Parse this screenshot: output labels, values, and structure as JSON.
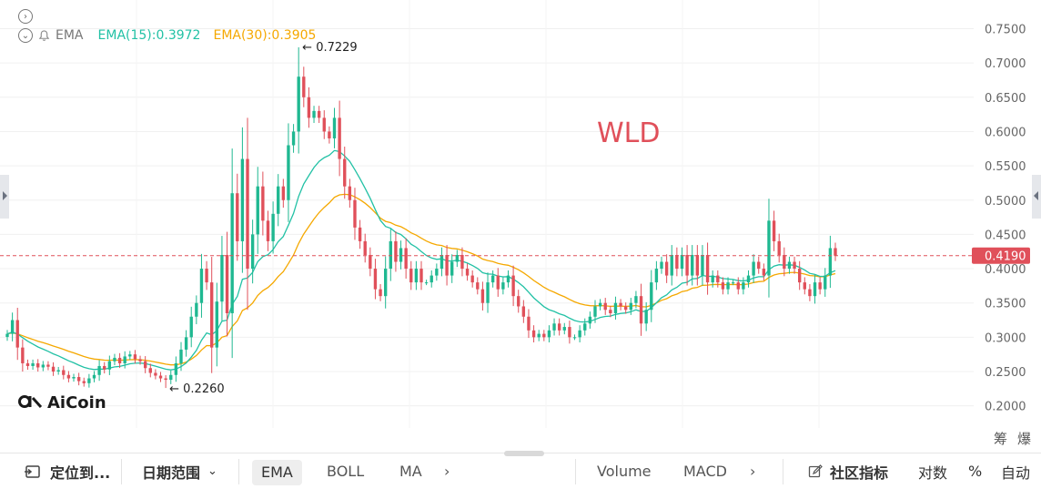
{
  "legend": {
    "indicator": "EMA",
    "ema15_label": "EMA(15):0.3972",
    "ema30_label": "EMA(30):0.3905",
    "ema15_color": "#22c1a5",
    "ema30_color": "#f5a800"
  },
  "watermark": {
    "symbol": "WLD",
    "brand": "AiCoin"
  },
  "annotations": {
    "high": "← 0.7229",
    "low": "← 0.2260"
  },
  "price_tag": "0.4190",
  "corner_labels": [
    "筹",
    "爆"
  ],
  "toolbar": {
    "locate": "定位到...",
    "date_range": "日期范围",
    "ema": "EMA",
    "boll": "BOLL",
    "ma": "MA",
    "volume": "Volume",
    "macd": "MACD",
    "community": "社区指标",
    "log": "对数",
    "percent": "%",
    "auto": "自动"
  },
  "colors": {
    "up": "#1fb891",
    "down": "#e0505a",
    "ema15": "#22c1a5",
    "ema30": "#f5a800",
    "price_line": "#e0505a"
  },
  "chart_data": {
    "type": "candlestick",
    "ylim": [
      0.17,
      0.79
    ],
    "yticks": [
      "0.7500",
      "0.7000",
      "0.6500",
      "0.6000",
      "0.5500",
      "0.5000",
      "0.4500",
      "0.4000",
      "0.3500",
      "0.3000",
      "0.2500",
      "0.2000"
    ],
    "ytick_values": [
      0.75,
      0.7,
      0.65,
      0.6,
      0.55,
      0.5,
      0.45,
      0.4,
      0.35,
      0.3,
      0.25,
      0.2
    ],
    "last_price": 0.419,
    "high": 0.7229,
    "low": 0.226,
    "high_index": 57,
    "low_index": 31,
    "ema15_last": 0.3972,
    "ema30_last": 0.3905,
    "closes": [
      0.305,
      0.325,
      0.285,
      0.262,
      0.258,
      0.262,
      0.256,
      0.26,
      0.257,
      0.25,
      0.252,
      0.245,
      0.24,
      0.242,
      0.236,
      0.233,
      0.24,
      0.245,
      0.258,
      0.253,
      0.265,
      0.27,
      0.262,
      0.272,
      0.275,
      0.268,
      0.265,
      0.255,
      0.248,
      0.244,
      0.24,
      0.238,
      0.245,
      0.262,
      0.282,
      0.3,
      0.33,
      0.35,
      0.4,
      0.38,
      0.285,
      0.352,
      0.42,
      0.335,
      0.51,
      0.44,
      0.56,
      0.4,
      0.45,
      0.52,
      0.47,
      0.44,
      0.48,
      0.52,
      0.5,
      0.58,
      0.6,
      0.68,
      0.65,
      0.62,
      0.63,
      0.62,
      0.6,
      0.59,
      0.62,
      0.56,
      0.52,
      0.5,
      0.46,
      0.44,
      0.42,
      0.4,
      0.37,
      0.36,
      0.4,
      0.44,
      0.41,
      0.43,
      0.4,
      0.38,
      0.4,
      0.38,
      0.38,
      0.39,
      0.4,
      0.42,
      0.39,
      0.41,
      0.42,
      0.4,
      0.39,
      0.38,
      0.37,
      0.35,
      0.38,
      0.39,
      0.37,
      0.38,
      0.39,
      0.36,
      0.345,
      0.33,
      0.31,
      0.3,
      0.305,
      0.3,
      0.31,
      0.32,
      0.31,
      0.315,
      0.3,
      0.3,
      0.31,
      0.32,
      0.33,
      0.345,
      0.35,
      0.34,
      0.335,
      0.35,
      0.345,
      0.34,
      0.35,
      0.36,
      0.32,
      0.34,
      0.38,
      0.4,
      0.41,
      0.39,
      0.42,
      0.4,
      0.42,
      0.39,
      0.42,
      0.39,
      0.42,
      0.38,
      0.39,
      0.38,
      0.37,
      0.38,
      0.38,
      0.37,
      0.38,
      0.39,
      0.41,
      0.4,
      0.39,
      0.47,
      0.44,
      0.42,
      0.4,
      0.41,
      0.4,
      0.38,
      0.37,
      0.36,
      0.38,
      0.37,
      0.39,
      0.43,
      0.419
    ]
  }
}
